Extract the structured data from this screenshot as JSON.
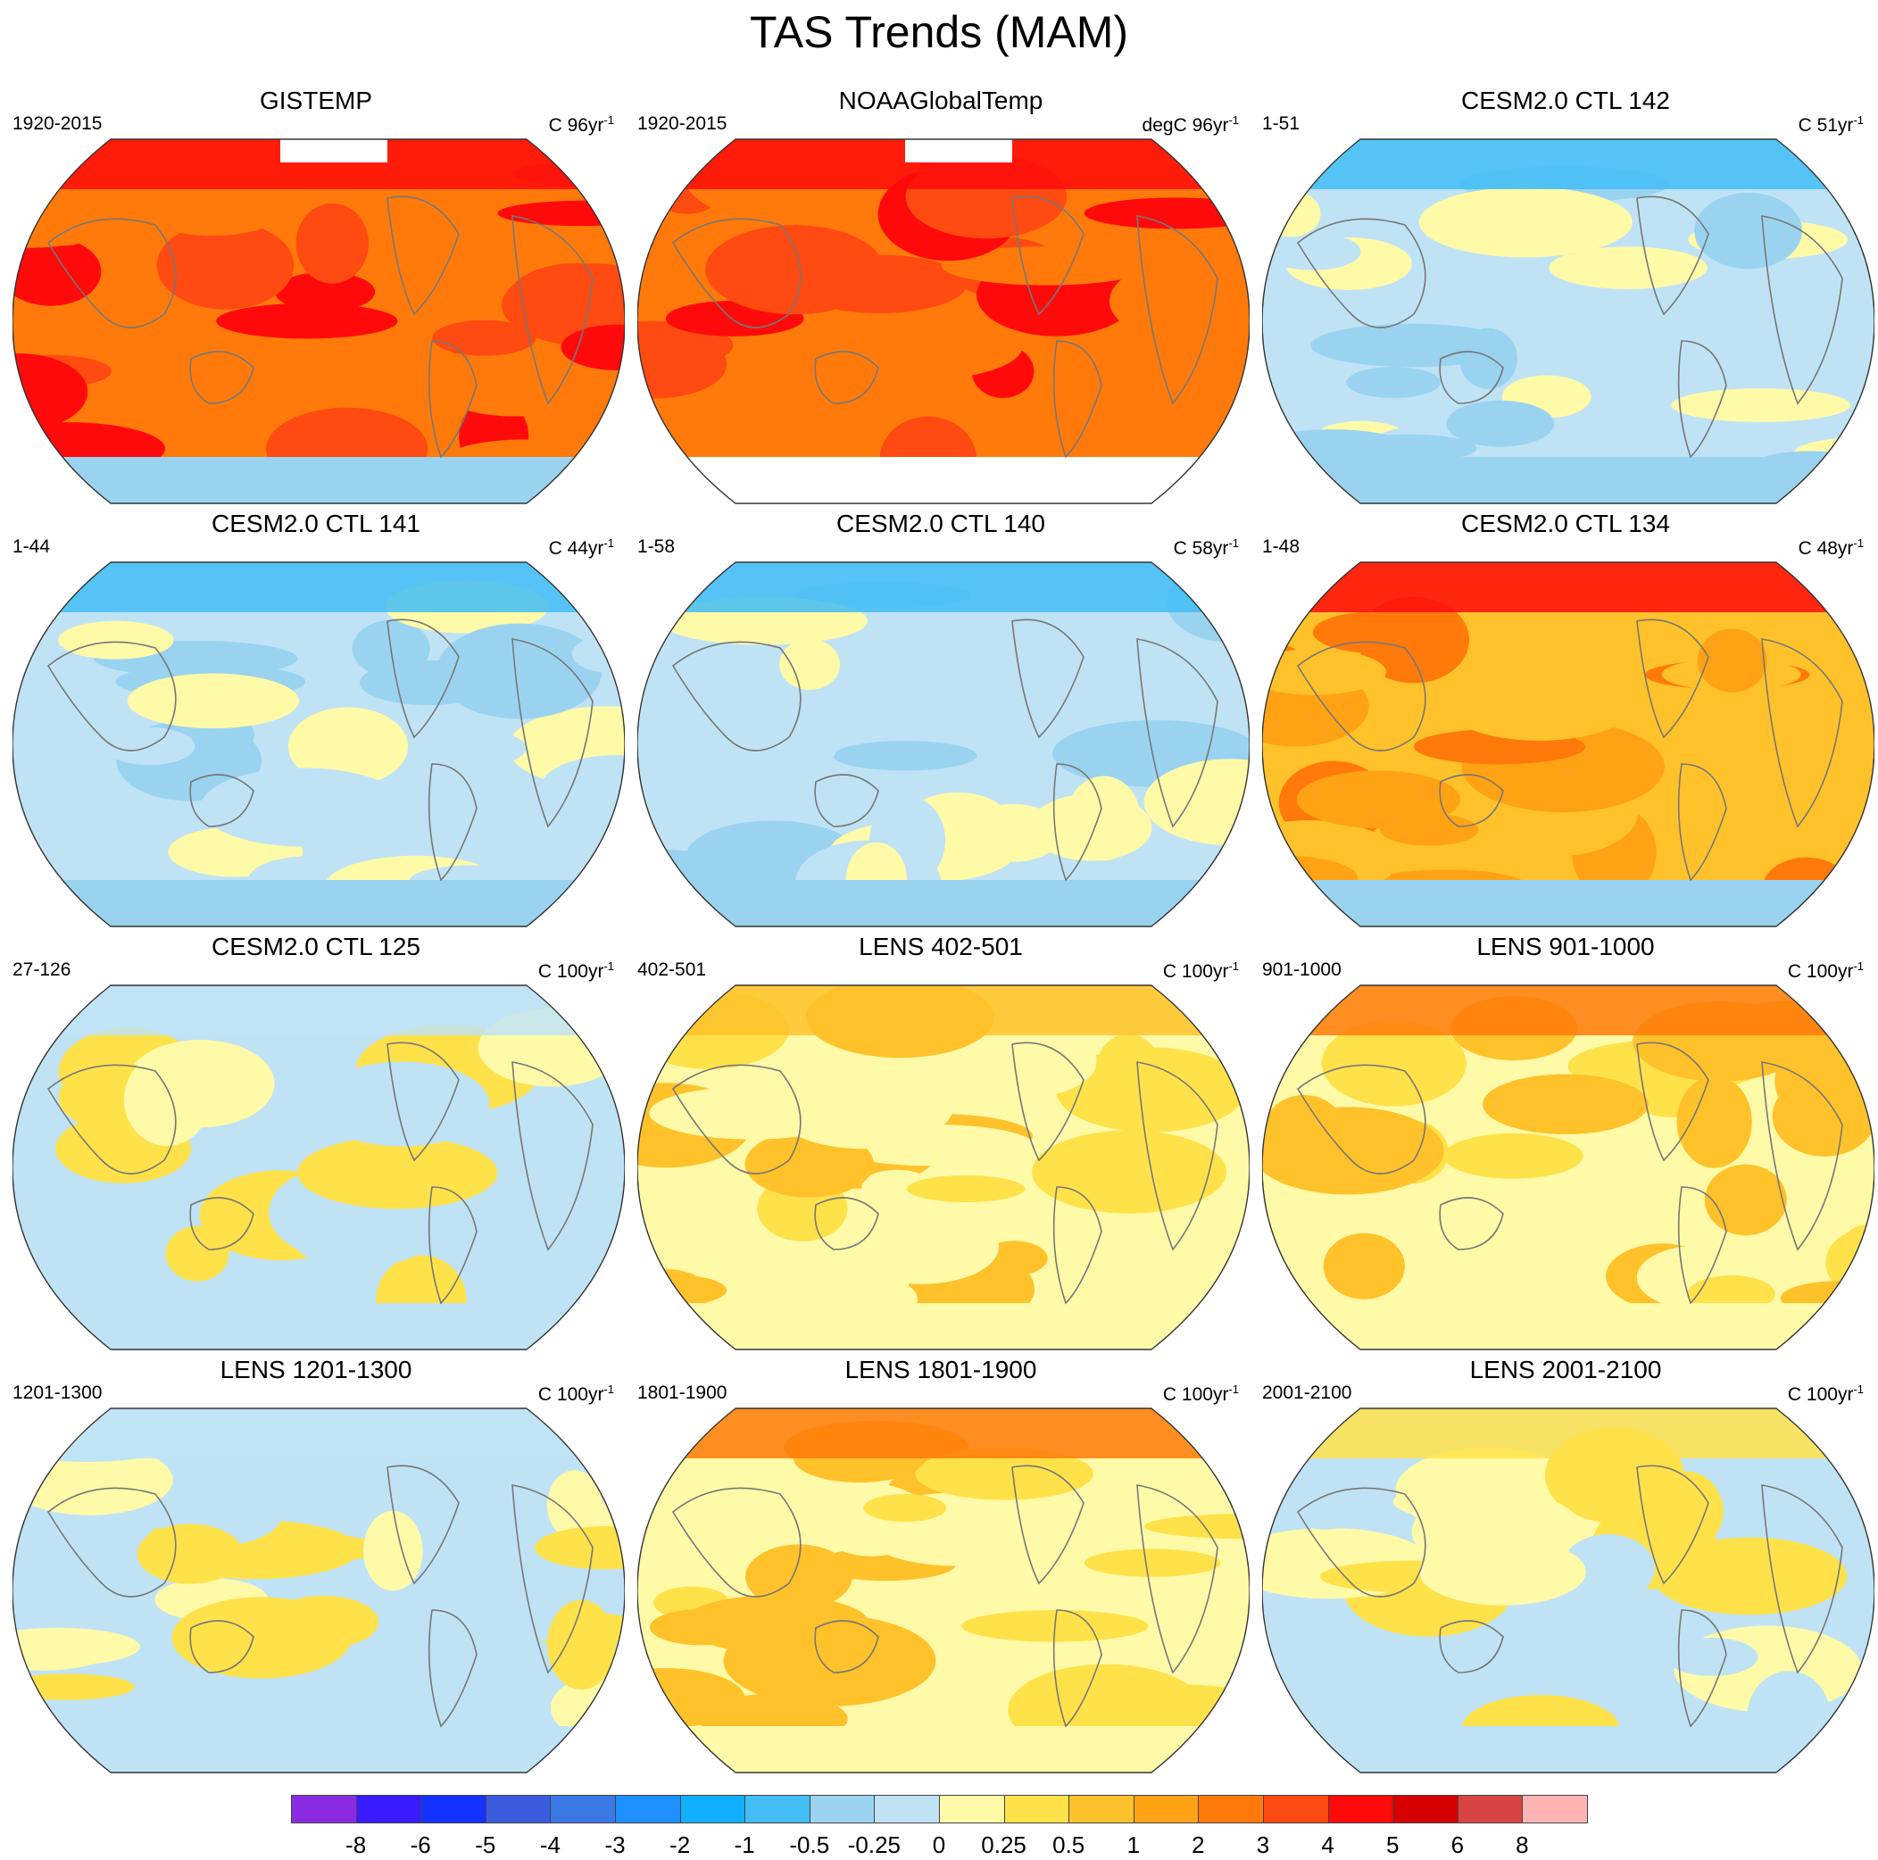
{
  "figure": {
    "title": "TAS Trends (MAM)"
  },
  "panels": [
    {
      "title": "GISTEMP",
      "period": "1920-2015",
      "unit": "C 96yr",
      "unit_sup": "-1",
      "field": {
        "base": 5,
        "polar_n": 6,
        "south_missing": false,
        "partial_missing": true
      }
    },
    {
      "title": "NOAAGlobalTemp",
      "period": "1920-2015",
      "unit": "degC 96yr",
      "unit_sup": "-1",
      "field": {
        "base": 5,
        "polar_n": 6,
        "south_missing": true,
        "partial_missing": true
      }
    },
    {
      "title": "CESM2.0 CTL 142",
      "period": "1-51",
      "unit": "C 51yr",
      "unit_sup": "-1",
      "field": {
        "base": -1,
        "polar_n": -3,
        "south_missing": false,
        "partial_missing": false
      }
    },
    {
      "title": "CESM2.0 CTL 141",
      "period": "1-44",
      "unit": "C 44yr",
      "unit_sup": "-1",
      "field": {
        "base": -1,
        "polar_n": -3,
        "south_missing": false,
        "partial_missing": false
      }
    },
    {
      "title": "CESM2.0 CTL 140",
      "period": "1-58",
      "unit": "C 58yr",
      "unit_sup": "-1",
      "field": {
        "base": -1,
        "polar_n": -3,
        "south_missing": false,
        "partial_missing": false
      }
    },
    {
      "title": "CESM2.0 CTL 134",
      "period": "1-48",
      "unit": "C 48yr",
      "unit_sup": "-1",
      "field": {
        "base": 3,
        "polar_n": 6,
        "south_missing": false,
        "partial_missing": false
      }
    },
    {
      "title": "CESM2.0 CTL 125",
      "period": "27-126",
      "unit": "C 100yr",
      "unit_sup": "-1",
      "field": {
        "base": 0,
        "polar_n": -1,
        "south_missing": false,
        "partial_missing": false
      }
    },
    {
      "title": "LENS 402-501",
      "period": "402-501",
      "unit": "C 100yr",
      "unit_sup": "-1",
      "field": {
        "base": 1,
        "polar_n": 2,
        "south_missing": false,
        "partial_missing": false
      }
    },
    {
      "title": "LENS 901-1000",
      "period": "901-1000",
      "unit": "C 100yr",
      "unit_sup": "-1",
      "field": {
        "base": 1,
        "polar_n": 4,
        "south_missing": false,
        "partial_missing": false
      }
    },
    {
      "title": "LENS 1201-1300",
      "period": "1201-1300",
      "unit": "C 100yr",
      "unit_sup": "-1",
      "field": {
        "base": 0,
        "polar_n": -1,
        "south_missing": false,
        "partial_missing": false
      }
    },
    {
      "title": "LENS 1801-1900",
      "period": "1801-1900",
      "unit": "C 100yr",
      "unit_sup": "-1",
      "field": {
        "base": 1,
        "polar_n": 4,
        "south_missing": false,
        "partial_missing": false
      }
    },
    {
      "title": "LENS 2001-2100",
      "period": "2001-2100",
      "unit": "C 100yr",
      "unit_sup": "-1",
      "field": {
        "base": 0,
        "polar_n": 1,
        "south_missing": false,
        "partial_missing": false
      }
    }
  ],
  "colorbar": {
    "colors": [
      "#8a2be2",
      "#3a1aff",
      "#1432ff",
      "#3c5ce0",
      "#3a78e6",
      "#1e90ff",
      "#10b0ff",
      "#42bdf5",
      "#9ad3f0",
      "#bfe3f5",
      "#fffaa8",
      "#ffe24a",
      "#ffc22a",
      "#ffa214",
      "#ff7a0a",
      "#ff4a12",
      "#ff0a0a",
      "#d60000",
      "#d84444",
      "#ffb4b4"
    ],
    "ticks": [
      "-8",
      "-6",
      "-5",
      "-4",
      "-3",
      "-2",
      "-1",
      "-0.5",
      "-0.25",
      "0",
      "0.25",
      "0.5",
      "1",
      "2",
      "3",
      "4",
      "5",
      "6",
      "8"
    ]
  }
}
